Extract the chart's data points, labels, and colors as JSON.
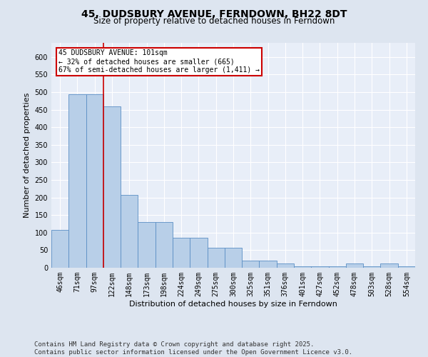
{
  "title": "45, DUDSBURY AVENUE, FERNDOWN, BH22 8DT",
  "subtitle": "Size of property relative to detached houses in Ferndown",
  "xlabel": "Distribution of detached houses by size in Ferndown",
  "ylabel": "Number of detached properties",
  "categories": [
    "46sqm",
    "71sqm",
    "97sqm",
    "122sqm",
    "148sqm",
    "173sqm",
    "198sqm",
    "224sqm",
    "249sqm",
    "275sqm",
    "300sqm",
    "325sqm",
    "351sqm",
    "376sqm",
    "401sqm",
    "427sqm",
    "452sqm",
    "478sqm",
    "503sqm",
    "528sqm",
    "554sqm"
  ],
  "values": [
    107,
    493,
    493,
    460,
    207,
    130,
    130,
    85,
    85,
    57,
    57,
    20,
    20,
    13,
    5,
    5,
    5,
    12,
    5,
    12,
    5
  ],
  "bar_color": "#b8cfe8",
  "bar_edge_color": "#5b8ec4",
  "vline_x": 2.5,
  "vline_color": "#cc0000",
  "annotation_text": "45 DUDSBURY AVENUE: 101sqm\n← 32% of detached houses are smaller (665)\n67% of semi-detached houses are larger (1,411) →",
  "annotation_box_color": "#cc0000",
  "ylim": [
    0,
    640
  ],
  "yticks": [
    0,
    50,
    100,
    150,
    200,
    250,
    300,
    350,
    400,
    450,
    500,
    550,
    600
  ],
  "footer": "Contains HM Land Registry data © Crown copyright and database right 2025.\nContains public sector information licensed under the Open Government Licence v3.0.",
  "background_color": "#dde5f0",
  "plot_background_color": "#e8eef8",
  "grid_color": "#ffffff",
  "title_fontsize": 10,
  "subtitle_fontsize": 8.5,
  "axis_label_fontsize": 8,
  "tick_fontsize": 7,
  "footer_fontsize": 6.5
}
